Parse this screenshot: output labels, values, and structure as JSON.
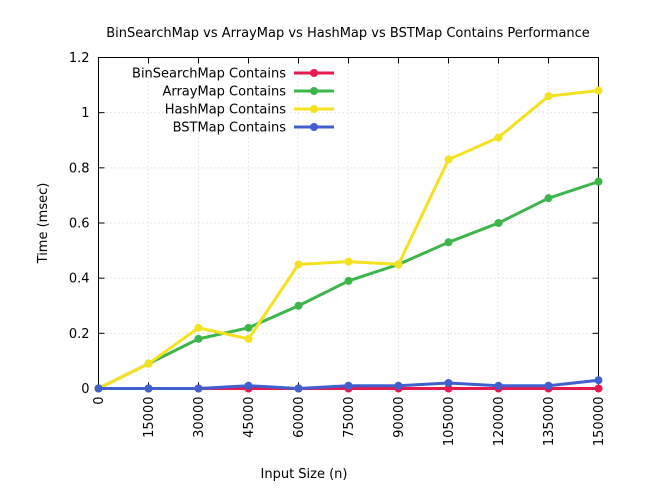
{
  "chart_data": {
    "type": "line",
    "title": "BinSearchMap vs ArrayMap vs HashMap vs BSTMap Contains Performance",
    "xlabel": "Input Size (n)",
    "ylabel": "Time (msec)",
    "xlim": [
      0,
      150000
    ],
    "ylim": [
      0,
      1.2
    ],
    "x": [
      0,
      15000,
      30000,
      45000,
      60000,
      75000,
      90000,
      105000,
      120000,
      135000,
      150000
    ],
    "x_tick_labels": [
      "0",
      "15000",
      "30000",
      "45000",
      "60000",
      "75000",
      "90000",
      "105000",
      "120000",
      "135000",
      "150000"
    ],
    "y_ticks": [
      0,
      0.2,
      0.4,
      0.6,
      0.8,
      1,
      1.2
    ],
    "y_tick_labels": [
      "0",
      "0.2",
      "0.4",
      "0.6",
      "0.8",
      "1",
      "1.2"
    ],
    "grid": true,
    "legend_position": "top-left",
    "series": [
      {
        "name": "BinSearchMap Contains",
        "color": "#e8194e",
        "values": [
          0,
          0,
          0,
          0,
          0,
          0,
          0,
          0,
          0,
          0,
          0
        ]
      },
      {
        "name": "ArrayMap Contains",
        "color": "#3cb54a",
        "values": [
          0,
          0.09,
          0.18,
          0.22,
          0.3,
          0.39,
          0.45,
          0.53,
          0.6,
          0.69,
          0.75
        ]
      },
      {
        "name": "HashMap Contains",
        "color": "#f5e11d",
        "values": [
          0,
          0.09,
          0.22,
          0.18,
          0.45,
          0.46,
          0.45,
          0.83,
          0.91,
          1.06,
          1.08
        ]
      },
      {
        "name": "BSTMap Contains",
        "color": "#4060d0",
        "values": [
          0,
          0,
          0,
          0.01,
          0,
          0.01,
          0.01,
          0.02,
          0.01,
          0.01,
          0.03
        ]
      }
    ]
  }
}
